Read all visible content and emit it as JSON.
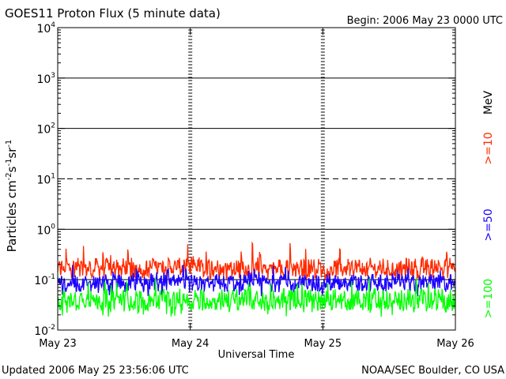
{
  "chart_data": {
    "type": "line",
    "title": "GOES11 Proton Flux (5 minute data)",
    "begin_label": "Begin: 2006 May 23 0000 UTC",
    "ylabel": "Particles cm-2s-1sr-1",
    "xlabel": "Universal Time",
    "y_scale": "log",
    "ylim": [
      0.01,
      10000
    ],
    "y_ticks": [
      {
        "value": 0.01,
        "base": "10",
        "exp": "-2"
      },
      {
        "value": 0.1,
        "base": "10",
        "exp": "-1"
      },
      {
        "value": 1,
        "base": "10",
        "exp": "0"
      },
      {
        "value": 10,
        "base": "10",
        "exp": "1"
      },
      {
        "value": 100,
        "base": "10",
        "exp": "2"
      },
      {
        "value": 1000,
        "base": "10",
        "exp": "3"
      },
      {
        "value": 10000,
        "base": "10",
        "exp": "4"
      }
    ],
    "x_range_days": [
      0,
      3
    ],
    "x_ticks": [
      {
        "day": 0,
        "label": "May 23"
      },
      {
        "day": 1,
        "label": "May 24"
      },
      {
        "day": 2,
        "label": "May 25"
      },
      {
        "day": 3,
        "label": "May 26"
      }
    ],
    "threshold_lines": [
      {
        "value": 10,
        "style": "dashed"
      },
      {
        "value": 1,
        "style": "solid"
      }
    ],
    "grid": true,
    "legend_unit": "MeV",
    "series": [
      {
        "name": ">=10",
        "color": "#ff2a00",
        "typical": 0.17,
        "min": 0.1,
        "max": 0.55
      },
      {
        "name": ">=50",
        "color": "#1a00ff",
        "typical": 0.085,
        "min": 0.045,
        "max": 0.2
      },
      {
        "name": ">=100",
        "color": "#00ff00",
        "typical": 0.04,
        "min": 0.018,
        "max": 0.11
      }
    ]
  },
  "footer": {
    "updated": "Updated 2006 May 25 23:56:06 UTC",
    "credit": "NOAA/SEC Boulder, CO USA"
  }
}
